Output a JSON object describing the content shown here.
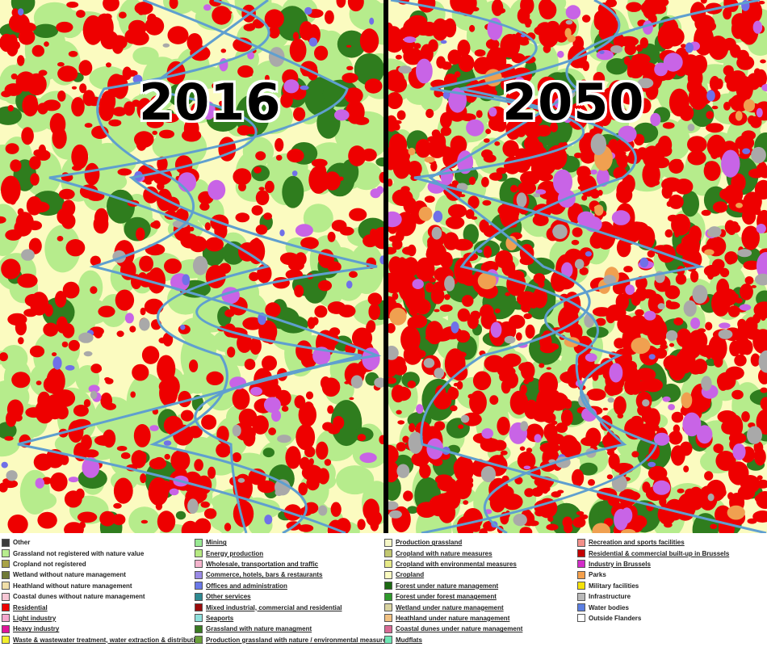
{
  "labels": {
    "left_year": "2016",
    "right_year": "2050"
  },
  "colors": {
    "residential": "#ee0000",
    "cropland": "#fbfbc0",
    "grassland": "#b6ec8c",
    "forest": "#2f7d1e",
    "water": "#5f9fcf",
    "infrastructure": "#a9a9a9",
    "industry": "#c864e6",
    "offices": "#7070e8",
    "parks": "#f0a050"
  },
  "legend": {
    "columns": [
      [
        {
          "label": "Other",
          "color": "#3c3c3c",
          "underline": false
        },
        {
          "label": "Grassland not registered with nature value",
          "color": "#b7ec8e",
          "underline": false
        },
        {
          "label": "Cropland not registered",
          "color": "#a9a346",
          "underline": false
        },
        {
          "label": "Wetland without nature management",
          "color": "#707a36",
          "underline": false
        },
        {
          "label": "Heathland without nature management",
          "color": "#f1dfa8",
          "underline": false
        },
        {
          "label": "Coastal dunes without nature management",
          "color": "#f7c7d5",
          "underline": false
        },
        {
          "label": "Residential",
          "color": "#ee0000",
          "underline": true
        },
        {
          "label": "Light industry",
          "color": "#f6a7cf",
          "underline": true
        },
        {
          "label": "Heavy industry",
          "color": "#e0149a",
          "underline": true
        },
        {
          "label": "Waste & wastewater treatment, water extraction & distribution",
          "color": "#f2ee2c",
          "underline": true
        }
      ],
      [
        {
          "label": "Mining",
          "color": "#99e993",
          "underline": true
        },
        {
          "label": "Energy production",
          "color": "#b6ea82",
          "underline": true
        },
        {
          "label": "Wholesale, transportation and traffic",
          "color": "#f4b3cc",
          "underline": true
        },
        {
          "label": "Commerce, hotels, bars & restaurants",
          "color": "#9a8ae6",
          "underline": true
        },
        {
          "label": "Offices and administration",
          "color": "#6a78e8",
          "underline": true
        },
        {
          "label": "Other services",
          "color": "#2e8a92",
          "underline": true
        },
        {
          "label": "Mixed industrial, commercial and residential",
          "color": "#9b0a0a",
          "underline": true
        },
        {
          "label": "Seaports",
          "color": "#8ee0dc",
          "underline": true
        },
        {
          "label": "Grassland with nature managment",
          "color": "#3a7a22",
          "underline": true
        },
        {
          "label": "Production grassland with nature / environmental measures",
          "color": "#6aa03a",
          "underline": true
        }
      ],
      [
        {
          "label": "Production grassland",
          "color": "#f6f7c6",
          "underline": true
        },
        {
          "label": "Cropland with nature measures",
          "color": "#c2c770",
          "underline": true
        },
        {
          "label": "Cropland with environmental measures",
          "color": "#e6e987",
          "underline": true
        },
        {
          "label": "Cropland",
          "color": "#fbfbc0",
          "underline": true
        },
        {
          "label": "Forest under nature management",
          "color": "#1c6a12",
          "underline": true
        },
        {
          "label": "Forest under forest management",
          "color": "#2f9a2c",
          "underline": true
        },
        {
          "label": "Wetland under nature management",
          "color": "#d9d3a0",
          "underline": true
        },
        {
          "label": "Heathland under nature management",
          "color": "#f2c182",
          "underline": true
        },
        {
          "label": "Coastal dunes under nature management",
          "color": "#d86a94",
          "underline": true
        },
        {
          "label": "Mudflats",
          "color": "#6ee6b4",
          "underline": true
        }
      ],
      [
        {
          "label": "Recreation and sports facilities",
          "color": "#f3908a",
          "underline": true
        },
        {
          "label": "Residential & commercial built-up in Brussels",
          "color": "#c40000",
          "underline": true
        },
        {
          "label": "Industry in Brussels",
          "color": "#d22cc8",
          "underline": true
        },
        {
          "label": "Parks",
          "color": "#f4a04c",
          "underline": false
        },
        {
          "label": "Military facilities",
          "color": "#f4e10a",
          "underline": false
        },
        {
          "label": "Infrastructure",
          "color": "#b9b9b9",
          "underline": false
        },
        {
          "label": "Water bodies",
          "color": "#5b7fe2",
          "underline": false
        },
        {
          "label": "Outside Flanders",
          "color": "#ffffff",
          "underline": false
        }
      ]
    ]
  }
}
